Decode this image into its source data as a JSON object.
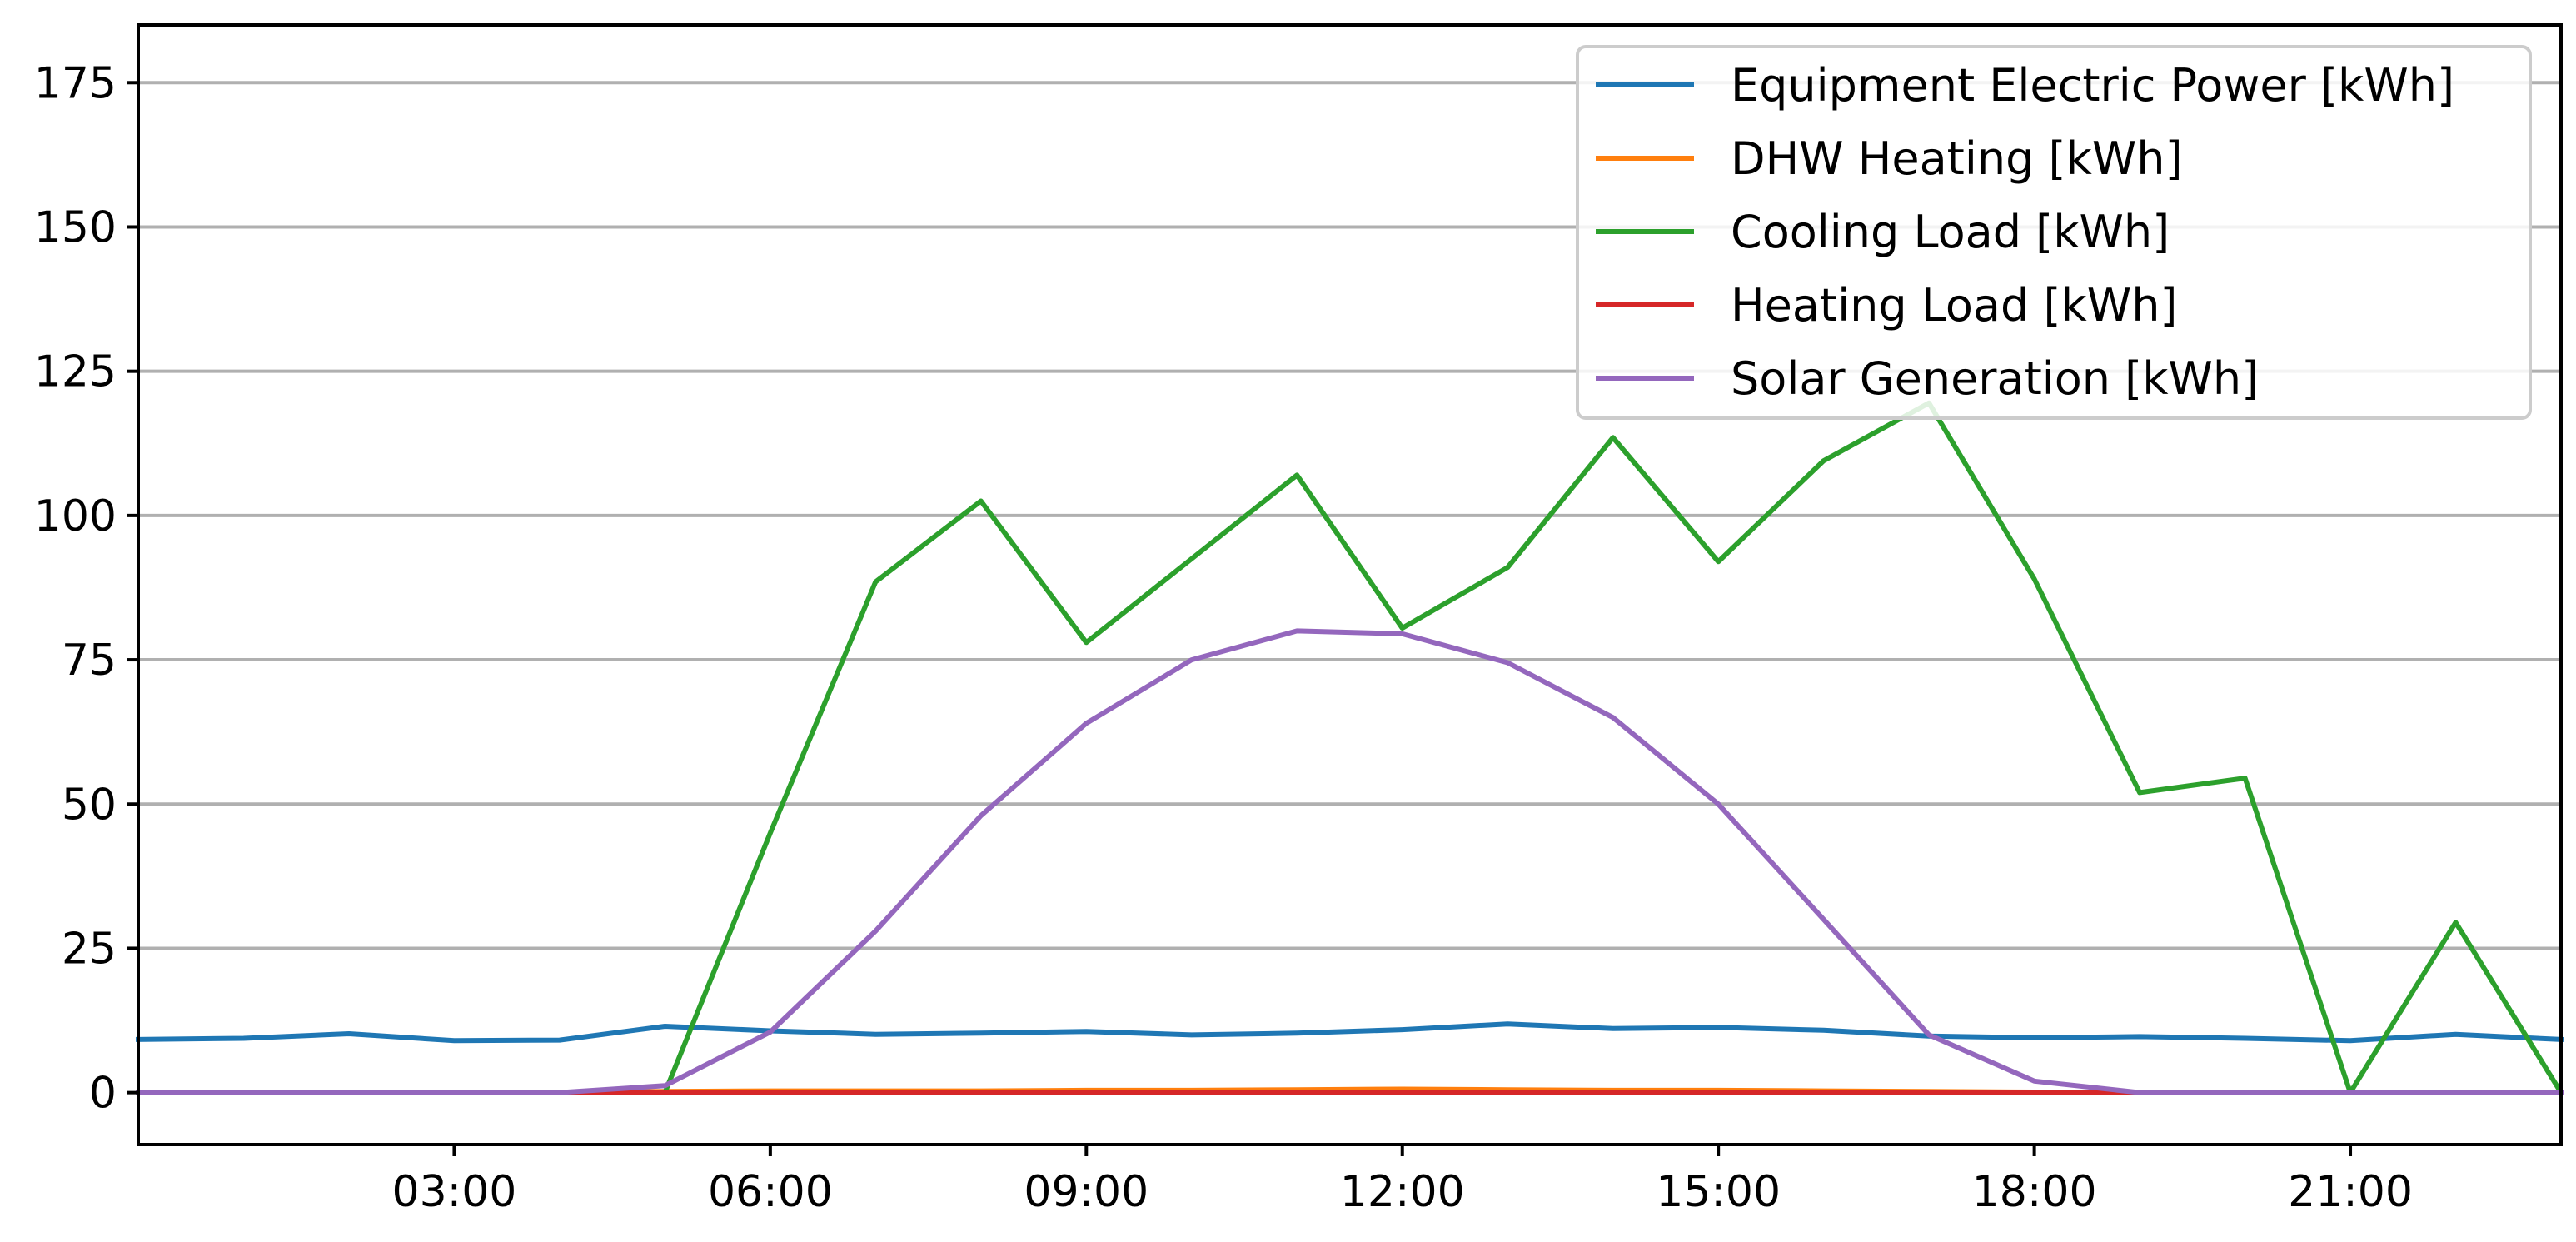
{
  "chart_data": {
    "type": "line",
    "x_values": [
      0,
      1,
      2,
      3,
      4,
      5,
      6,
      7,
      8,
      9,
      10,
      11,
      12,
      13,
      14,
      15,
      16,
      17,
      18,
      19,
      20,
      21,
      22,
      23
    ],
    "xlim": [
      0,
      23
    ],
    "ylim": [
      -9,
      185
    ],
    "x_ticks": [
      {
        "value": 3,
        "label": "03:00"
      },
      {
        "value": 6,
        "label": "06:00"
      },
      {
        "value": 9,
        "label": "09:00"
      },
      {
        "value": 12,
        "label": "12:00"
      },
      {
        "value": 15,
        "label": "15:00"
      },
      {
        "value": 18,
        "label": "18:00"
      },
      {
        "value": 21,
        "label": "21:00"
      }
    ],
    "y_ticks": [
      {
        "value": 0,
        "label": "0"
      },
      {
        "value": 25,
        "label": "25"
      },
      {
        "value": 50,
        "label": "50"
      },
      {
        "value": 75,
        "label": "75"
      },
      {
        "value": 100,
        "label": "100"
      },
      {
        "value": 125,
        "label": "125"
      },
      {
        "value": 150,
        "label": "150"
      },
      {
        "value": 175,
        "label": "175"
      }
    ],
    "grid": "horizontal",
    "legend_position": "top-right",
    "series": [
      {
        "name": "Equipment Electric Power [kWh]",
        "color": "#1f77b4",
        "values": [
          9.2,
          9.4,
          10.2,
          9,
          9.1,
          11.5,
          10.7,
          10.1,
          10.3,
          10.6,
          10,
          10.3,
          10.9,
          11.9,
          11.1,
          11.3,
          10.8,
          9.8,
          9.5,
          9.7,
          9.4,
          9,
          10.1,
          9.2
        ]
      },
      {
        "name": "DHW Heating [kWh]",
        "color": "#ff7f0e",
        "values": [
          0,
          0,
          0,
          0,
          0,
          0.2,
          0.3,
          0.3,
          0.3,
          0.4,
          0.4,
          0.5,
          0.6,
          0.5,
          0.4,
          0.4,
          0.3,
          0.2,
          0.1,
          0,
          0,
          0,
          0,
          0
        ]
      },
      {
        "name": "Cooling Load [kWh]",
        "color": "#2ca02c",
        "values": [
          0,
          0,
          0,
          0,
          0,
          0,
          45,
          88.5,
          102.5,
          78,
          92.5,
          107,
          80.5,
          91,
          113.5,
          92,
          109.5,
          119.5,
          89,
          52,
          54.5,
          0,
          29.5,
          0
        ]
      },
      {
        "name": "Heating Load [kWh]",
        "color": "#d62728",
        "values": [
          0,
          0,
          0,
          0,
          0,
          0,
          0,
          0,
          0,
          0,
          0,
          0,
          0,
          0,
          0,
          0,
          0,
          0,
          0,
          0,
          0,
          0,
          0,
          0
        ]
      },
      {
        "name": "Solar Generation [kWh]",
        "color": "#9467bd",
        "values": [
          0,
          0,
          0,
          0,
          0,
          1.2,
          10.5,
          28,
          48,
          64,
          75,
          80,
          79.5,
          74.5,
          65,
          50,
          30,
          10,
          2,
          0,
          0,
          0,
          0,
          0
        ]
      }
    ]
  }
}
